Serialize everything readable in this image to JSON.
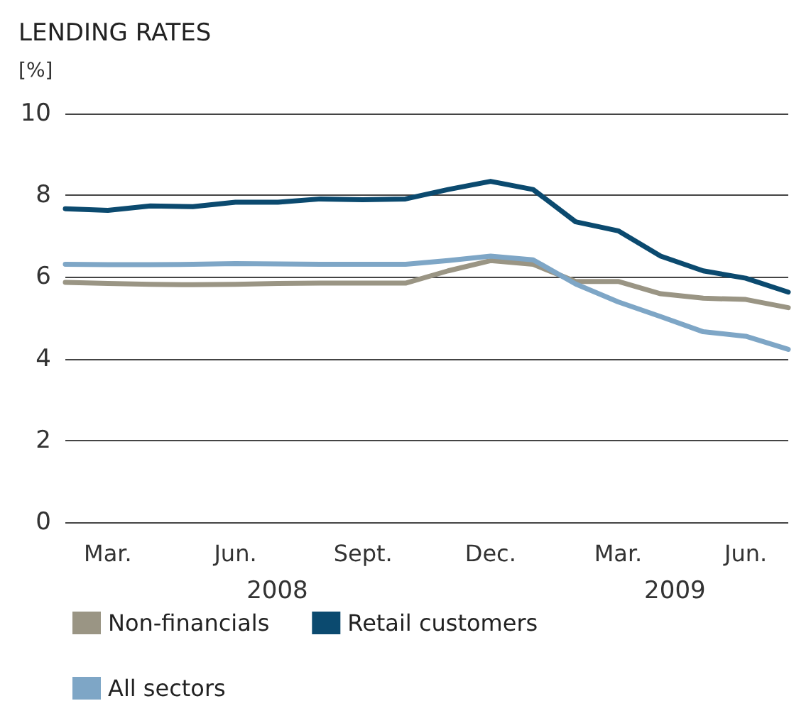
{
  "chart_data": {
    "type": "line",
    "title": "LENDING RATES",
    "ylabel": "[%]",
    "categories": [
      null,
      "Mar.",
      null,
      null,
      "Jun.",
      null,
      null,
      "Sept.",
      null,
      null,
      "Dec.",
      null,
      null,
      "Mar.",
      null,
      null,
      "Jun.",
      null
    ],
    "annotations": [
      "2008",
      "2009"
    ],
    "series": [
      {
        "name": "Non-financials",
        "color": "#9a9584",
        "values": [
          5.87,
          5.84,
          5.82,
          5.81,
          5.82,
          5.84,
          5.85,
          5.85,
          5.85,
          6.15,
          6.4,
          6.31,
          5.89,
          5.89,
          5.59,
          5.48,
          5.45,
          5.25
        ]
      },
      {
        "name": "Retail customers",
        "color": "#0b4a6f",
        "values": [
          7.67,
          7.63,
          7.74,
          7.72,
          7.83,
          7.83,
          7.91,
          7.89,
          7.91,
          8.14,
          8.34,
          8.14,
          7.35,
          7.13,
          6.51,
          6.15,
          5.97,
          5.63
        ]
      },
      {
        "name": "All sectors",
        "color": "#7ea6c6",
        "values": [
          6.31,
          6.3,
          6.3,
          6.31,
          6.33,
          6.32,
          6.31,
          6.31,
          6.31,
          6.4,
          6.51,
          6.42,
          5.83,
          5.39,
          5.03,
          4.66,
          4.55,
          4.23
        ]
      }
    ],
    "ylim": [
      0,
      10
    ],
    "yticks": [
      0,
      2,
      4,
      6,
      8,
      10
    ],
    "grid": "y",
    "legend": "bottom",
    "marker": "none",
    "line_style": "solid"
  }
}
